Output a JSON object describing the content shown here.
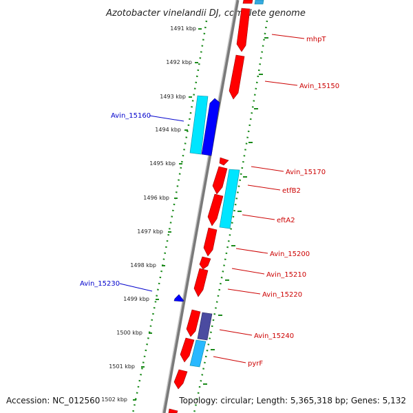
{
  "title": "Azotobacter vinelandii DJ, complete genome",
  "accession": "Accession: NC_012560",
  "topology": "Topology: circular; Length: 5,365,318 bp; Genes: 5,132",
  "colors": {
    "forward_gene": "#ff0000",
    "reverse_gene": "#0000ff",
    "rna": "#00e5ff",
    "other": "#4b4ba0",
    "backbone": "#8a8a8a",
    "kbp_track": "#1a8a1a",
    "label_red": "#cc0000",
    "label_blue": "#0000cc"
  },
  "ticks": [
    "1491 kbp",
    "1492 kbp",
    "1493 kbp",
    "1494 kbp",
    "1495 kbp",
    "1496 kbp",
    "1497 kbp",
    "1498 kbp",
    "1499 kbp",
    "1500 kbp",
    "1501 kbp",
    "1502 kbp"
  ],
  "labels": {
    "mhpT": "mhpT",
    "Avin_15150": "Avin_15150",
    "Avin_15160": "Avin_15160",
    "Avin_15170": "Avin_15170",
    "etfB2": "etfB2",
    "eftA2": "eftA2",
    "Avin_15200": "Avin_15200",
    "Avin_15210": "Avin_15210",
    "Avin_15220": "Avin_15220",
    "Avin_15230": "Avin_15230",
    "Avin_15240": "Avin_15240",
    "pyrF": "pyrF"
  }
}
